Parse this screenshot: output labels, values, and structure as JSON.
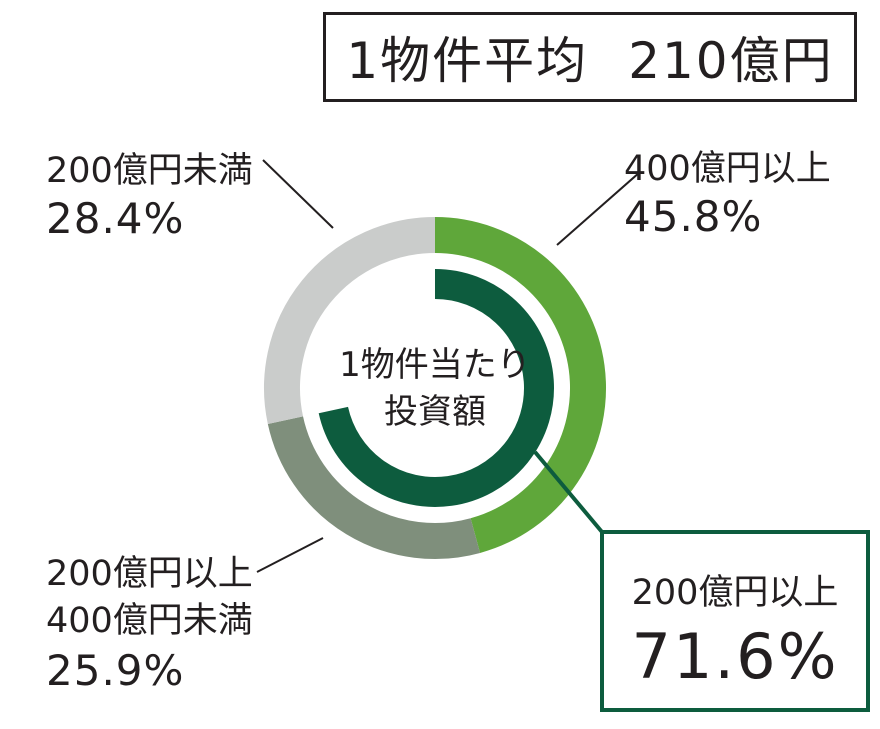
{
  "title": {
    "label": "1物件平均",
    "value": "210億円"
  },
  "center": {
    "line1": "1物件当たり",
    "line2": "投資額"
  },
  "colors": {
    "over400": "#5fa73a",
    "from200to400": "#7f8f7c",
    "under200": "#cacccb",
    "highlight": "#0d5c3e"
  },
  "chart_data": {
    "type": "pie",
    "title": "1物件平均　210億円",
    "series": [
      {
        "name": "400億円以上",
        "value": 45.8,
        "value_label": "45.8%"
      },
      {
        "name": "200億円以上400億円未満",
        "value": 25.9,
        "value_label": "25.9%"
      },
      {
        "name": "200億円未満",
        "value": 28.4,
        "value_label": "28.4%"
      }
    ],
    "highlight": {
      "name": "200億円以上",
      "value": 71.6,
      "value_label": "71.6%"
    }
  },
  "labels": {
    "over400": {
      "name": "400億円以上",
      "pct": "45.8%"
    },
    "mid": {
      "line1": "200億円以上",
      "line2": "400億円未満",
      "pct": "25.9%"
    },
    "under200": {
      "name": "200億円未満",
      "pct": "28.4%"
    },
    "highlight": {
      "name": "200億円以上",
      "pct": "71.6%"
    }
  }
}
